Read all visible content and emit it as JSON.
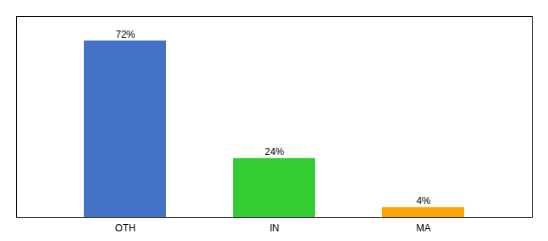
{
  "chart_data": {
    "type": "bar",
    "categories": [
      "OTH",
      "IN",
      "MA"
    ],
    "values": [
      72,
      24,
      4
    ],
    "value_labels": [
      "72%",
      "24%",
      "4%"
    ],
    "colors": [
      "#4472C4",
      "#33CC33",
      "#FFA500"
    ],
    "ylim": [
      0,
      82
    ],
    "data_labels": true,
    "tick_labels": "x"
  }
}
